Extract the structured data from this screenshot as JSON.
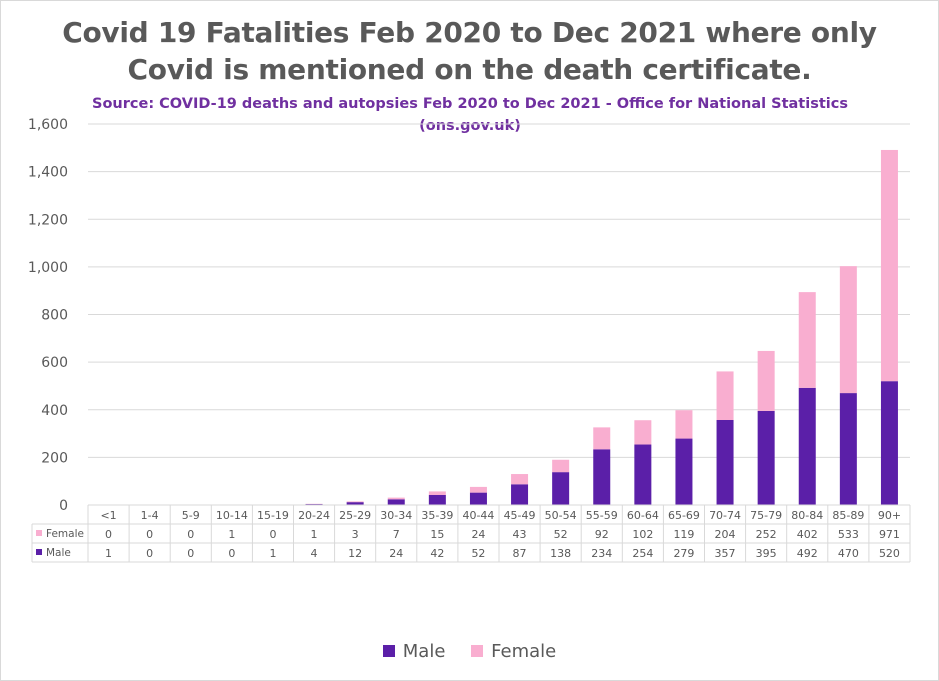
{
  "title_lines": [
    "Covid 19 Fatalities Feb 2020 to Dec 2021 where only",
    "Covid is mentioned on the death certificate."
  ],
  "source_lines": [
    "Source: COVID-19 deaths and autopsies Feb 2020 to Dec 2021 - Office for National Statistics",
    "(ons.gov.uk)"
  ],
  "colors": {
    "male": "#5b1fa8",
    "female": "#f9aed0"
  },
  "legend": [
    "Male",
    "Female"
  ],
  "chart_data": {
    "type": "bar",
    "stacked": true,
    "categories": [
      "<1",
      "1-4",
      "5-9",
      "10-14",
      "15-19",
      "20-24",
      "25-29",
      "30-34",
      "35-39",
      "40-44",
      "45-49",
      "50-54",
      "55-59",
      "60-64",
      "65-69",
      "70-74",
      "75-79",
      "80-84",
      "85-89",
      "90+"
    ],
    "series": [
      {
        "name": "Male",
        "values": [
          1,
          0,
          0,
          0,
          1,
          4,
          12,
          24,
          42,
          52,
          87,
          138,
          234,
          254,
          279,
          357,
          395,
          492,
          470,
          520
        ]
      },
      {
        "name": "Female",
        "values": [
          0,
          0,
          0,
          1,
          0,
          1,
          3,
          7,
          15,
          24,
          43,
          52,
          92,
          102,
          119,
          204,
          252,
          402,
          533,
          971
        ]
      }
    ],
    "table_rows": [
      "Female",
      "Male"
    ],
    "ylim": [
      0,
      1600
    ],
    "yticks": [
      0,
      200,
      400,
      600,
      800,
      1000,
      1200,
      1400,
      1600
    ],
    "ytick_labels": [
      "0",
      "200",
      "400",
      "600",
      "800",
      "1,000",
      "1,200",
      "1,400",
      "1,600"
    ],
    "grid": true,
    "legend_position": "bottom",
    "data_table": true
  }
}
